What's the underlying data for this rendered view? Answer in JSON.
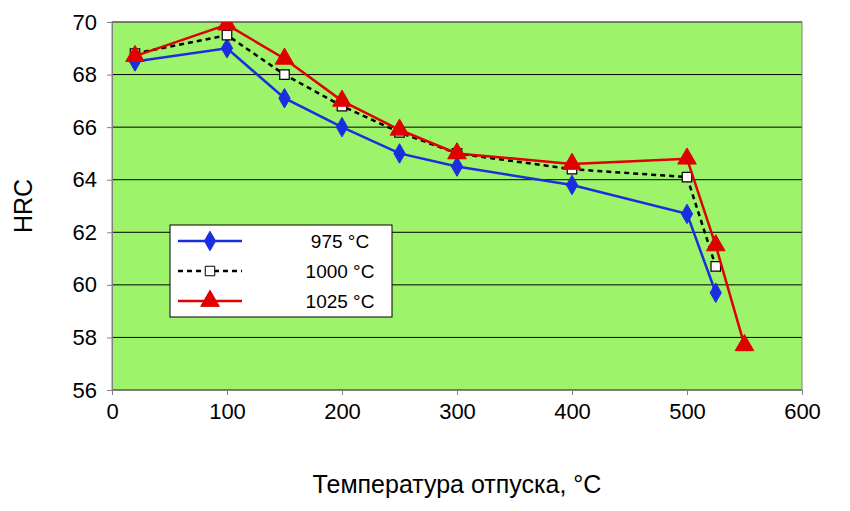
{
  "chart_data": {
    "type": "line",
    "x_label": "Температура отпуска, °C",
    "y_label": "HRC",
    "x": [
      20,
      100,
      150,
      200,
      250,
      300,
      400,
      500,
      525,
      550
    ],
    "series": [
      {
        "name": "975 °C",
        "color": "#1a2ee0",
        "marker": "diamond",
        "line_style": "solid",
        "values": [
          68.5,
          69.0,
          67.1,
          66.0,
          65.0,
          64.5,
          63.8,
          62.7,
          59.7,
          null
        ]
      },
      {
        "name": "1000 °C",
        "color": "#000000",
        "marker": "square",
        "line_style": "dashed",
        "values": [
          68.8,
          69.5,
          68.0,
          66.8,
          65.8,
          65.0,
          64.4,
          64.1,
          60.7,
          null
        ]
      },
      {
        "name": "1025 °C",
        "color": "#e00000",
        "marker": "triangle",
        "line_style": "solid",
        "values": [
          68.7,
          69.9,
          68.6,
          67.0,
          65.9,
          65.0,
          64.6,
          64.8,
          61.5,
          57.7
        ]
      }
    ],
    "xlim": [
      0,
      600
    ],
    "xticks": [
      0,
      100,
      200,
      300,
      400,
      500,
      600
    ],
    "ylim": [
      56,
      70
    ],
    "yticks": [
      56,
      58,
      60,
      62,
      64,
      66,
      68,
      70
    ],
    "grid": true,
    "legend": "left"
  }
}
